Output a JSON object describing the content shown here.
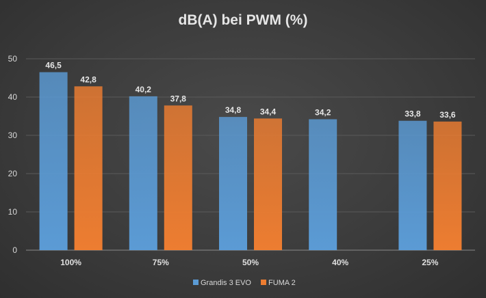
{
  "chart_data": {
    "type": "bar",
    "title": "dB(A) bei PWM (%)",
    "xlabel": "",
    "ylabel": "",
    "ylim": [
      0,
      50
    ],
    "yticks": [
      0,
      10,
      20,
      30,
      40,
      50
    ],
    "grid": true,
    "legend_position": "bottom",
    "categories": [
      "100%",
      "75%",
      "50%",
      "40%",
      "25%"
    ],
    "series": [
      {
        "name": "Grandis 3 EVO",
        "color": "#5b9bd5",
        "values": [
          46.5,
          40.2,
          34.8,
          34.2,
          33.8
        ],
        "labels": [
          "46,5",
          "40,2",
          "34,8",
          "34,2",
          "33,8"
        ]
      },
      {
        "name": "FUMA 2",
        "color": "#ed7d31",
        "values": [
          42.8,
          37.8,
          34.4,
          null,
          33.6
        ],
        "labels": [
          "42,8",
          "37,8",
          "34,4",
          null,
          "33,6"
        ]
      }
    ]
  }
}
